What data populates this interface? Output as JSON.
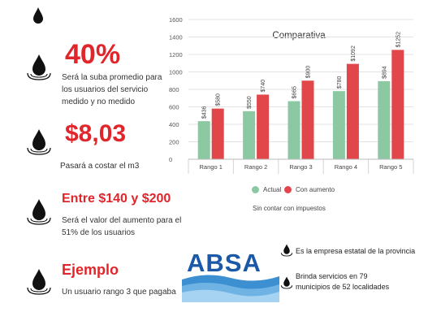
{
  "items": [
    {
      "headline": "",
      "description": ""
    },
    {
      "headline": "40%",
      "description": "Será la suba promedio para los usuarios del servicio medido y no medido"
    },
    {
      "headline": "$8,03",
      "description": "Pasará a costar el m3"
    },
    {
      "headline": "Entre $140 y $200",
      "description": "Será el valor del aumento para el 51% de los usuarios"
    },
    {
      "headline": "Ejemplo",
      "description": "Un usuario rango 3 que pagaba"
    }
  ],
  "chart_data": {
    "type": "bar",
    "title": "Comparativa",
    "categories": [
      "Rango 1",
      "Rango 2",
      "Rango 3",
      "Rango 4",
      "Rango 5"
    ],
    "series": [
      {
        "name": "Actual",
        "values": [
          436,
          550,
          665,
          780,
          894
        ],
        "labels": [
          "$436",
          "$550",
          "$665",
          "$780",
          "$894"
        ],
        "color": "#8cc9a3"
      },
      {
        "name": "Con aumento",
        "values": [
          580,
          740,
          900,
          1092,
          1252
        ],
        "labels": [
          "$580",
          "$740",
          "$900",
          "$1092",
          "$1252"
        ],
        "color": "#e0464a"
      }
    ],
    "ylim": [
      0,
      1600
    ],
    "yticks": [
      0,
      200,
      400,
      600,
      800,
      1000,
      1200,
      1400,
      1600
    ],
    "grid": true,
    "legend": "bottom",
    "xlabel": "",
    "ylabel": ""
  },
  "chart_note": "Sin contar con impuestos",
  "company": {
    "logo_text": "ABSA",
    "facts": [
      "Es la empresa estatal de la provincia",
      "Brinda servicios en 79 municipios de 52 localidades"
    ]
  },
  "colors": {
    "accent": "#e0252b",
    "drop": "#111111",
    "logo_blue": "#1b58a8"
  }
}
